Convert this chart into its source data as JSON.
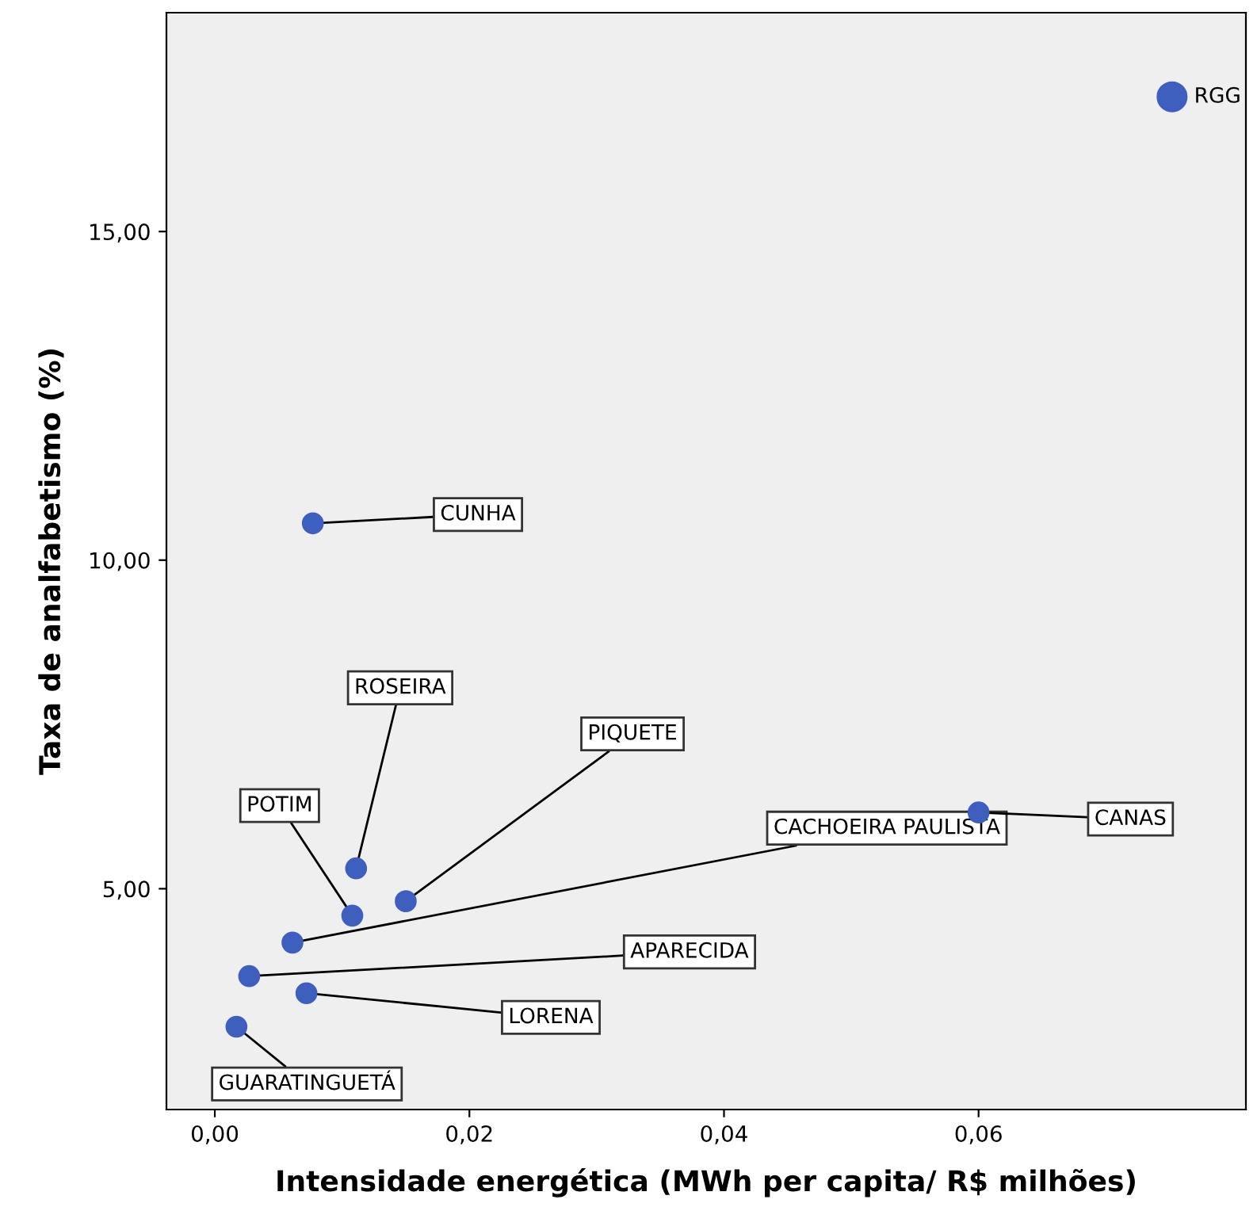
{
  "chart_data": {
    "type": "scatter",
    "xlabel": "Intensidade energética (MWh per capita/ R$ milhões)",
    "ylabel": "Taxa de analfabetismo (%)",
    "series": [
      {
        "color": "#3f5fbf",
        "x": [
          0.0077,
          0.0111,
          0.0108,
          0.015,
          0.0061,
          0.0027,
          0.0072,
          0.0017,
          0.06
        ],
        "values": [
          10.56,
          5.31,
          4.59,
          4.81,
          4.18,
          3.67,
          3.41,
          2.9,
          6.16
        ]
      },
      {
        "color": "#3f5fbf",
        "x": [
          0.0752
        ],
        "values": [
          17.05
        ]
      }
    ],
    "annotations": [
      {
        "text": "CUNHA",
        "x": 0.0077,
        "y": 10.56
      },
      {
        "text": "ROSEIRA",
        "x": 0.0111,
        "y": 5.31
      },
      {
        "text": "POTIM",
        "x": 0.0108,
        "y": 4.59
      },
      {
        "text": "PIQUETE",
        "x": 0.015,
        "y": 4.81
      },
      {
        "text": "CACHOEIRA PAULISTA",
        "x": 0.0061,
        "y": 4.18
      },
      {
        "text": "APARECIDA",
        "x": 0.0027,
        "y": 3.67
      },
      {
        "text": "LORENA",
        "x": 0.0072,
        "y": 3.41
      },
      {
        "text": "GUARATINGUETÁ",
        "x": 0.0017,
        "y": 2.9
      },
      {
        "text": "CANAS",
        "x": 0.06,
        "y": 6.16
      },
      {
        "text": "RGG",
        "x": 0.0752,
        "y": 17.05
      }
    ],
    "xlim": [
      -0.0038,
      0.081
    ],
    "ylim": [
      1.64,
      18.33
    ],
    "xticks": [
      {
        "value": 0,
        "label": "0,00"
      },
      {
        "value": 0.02,
        "label": "0,02"
      },
      {
        "value": 0.04,
        "label": "0,04"
      },
      {
        "value": 0.06,
        "label": "0,06"
      }
    ],
    "yticks": [
      {
        "value": 5,
        "label": "5,00"
      },
      {
        "value": 10,
        "label": "10,00"
      },
      {
        "value": 15,
        "label": "15,00"
      }
    ],
    "marker": "circle",
    "grid": false,
    "legend": false
  }
}
